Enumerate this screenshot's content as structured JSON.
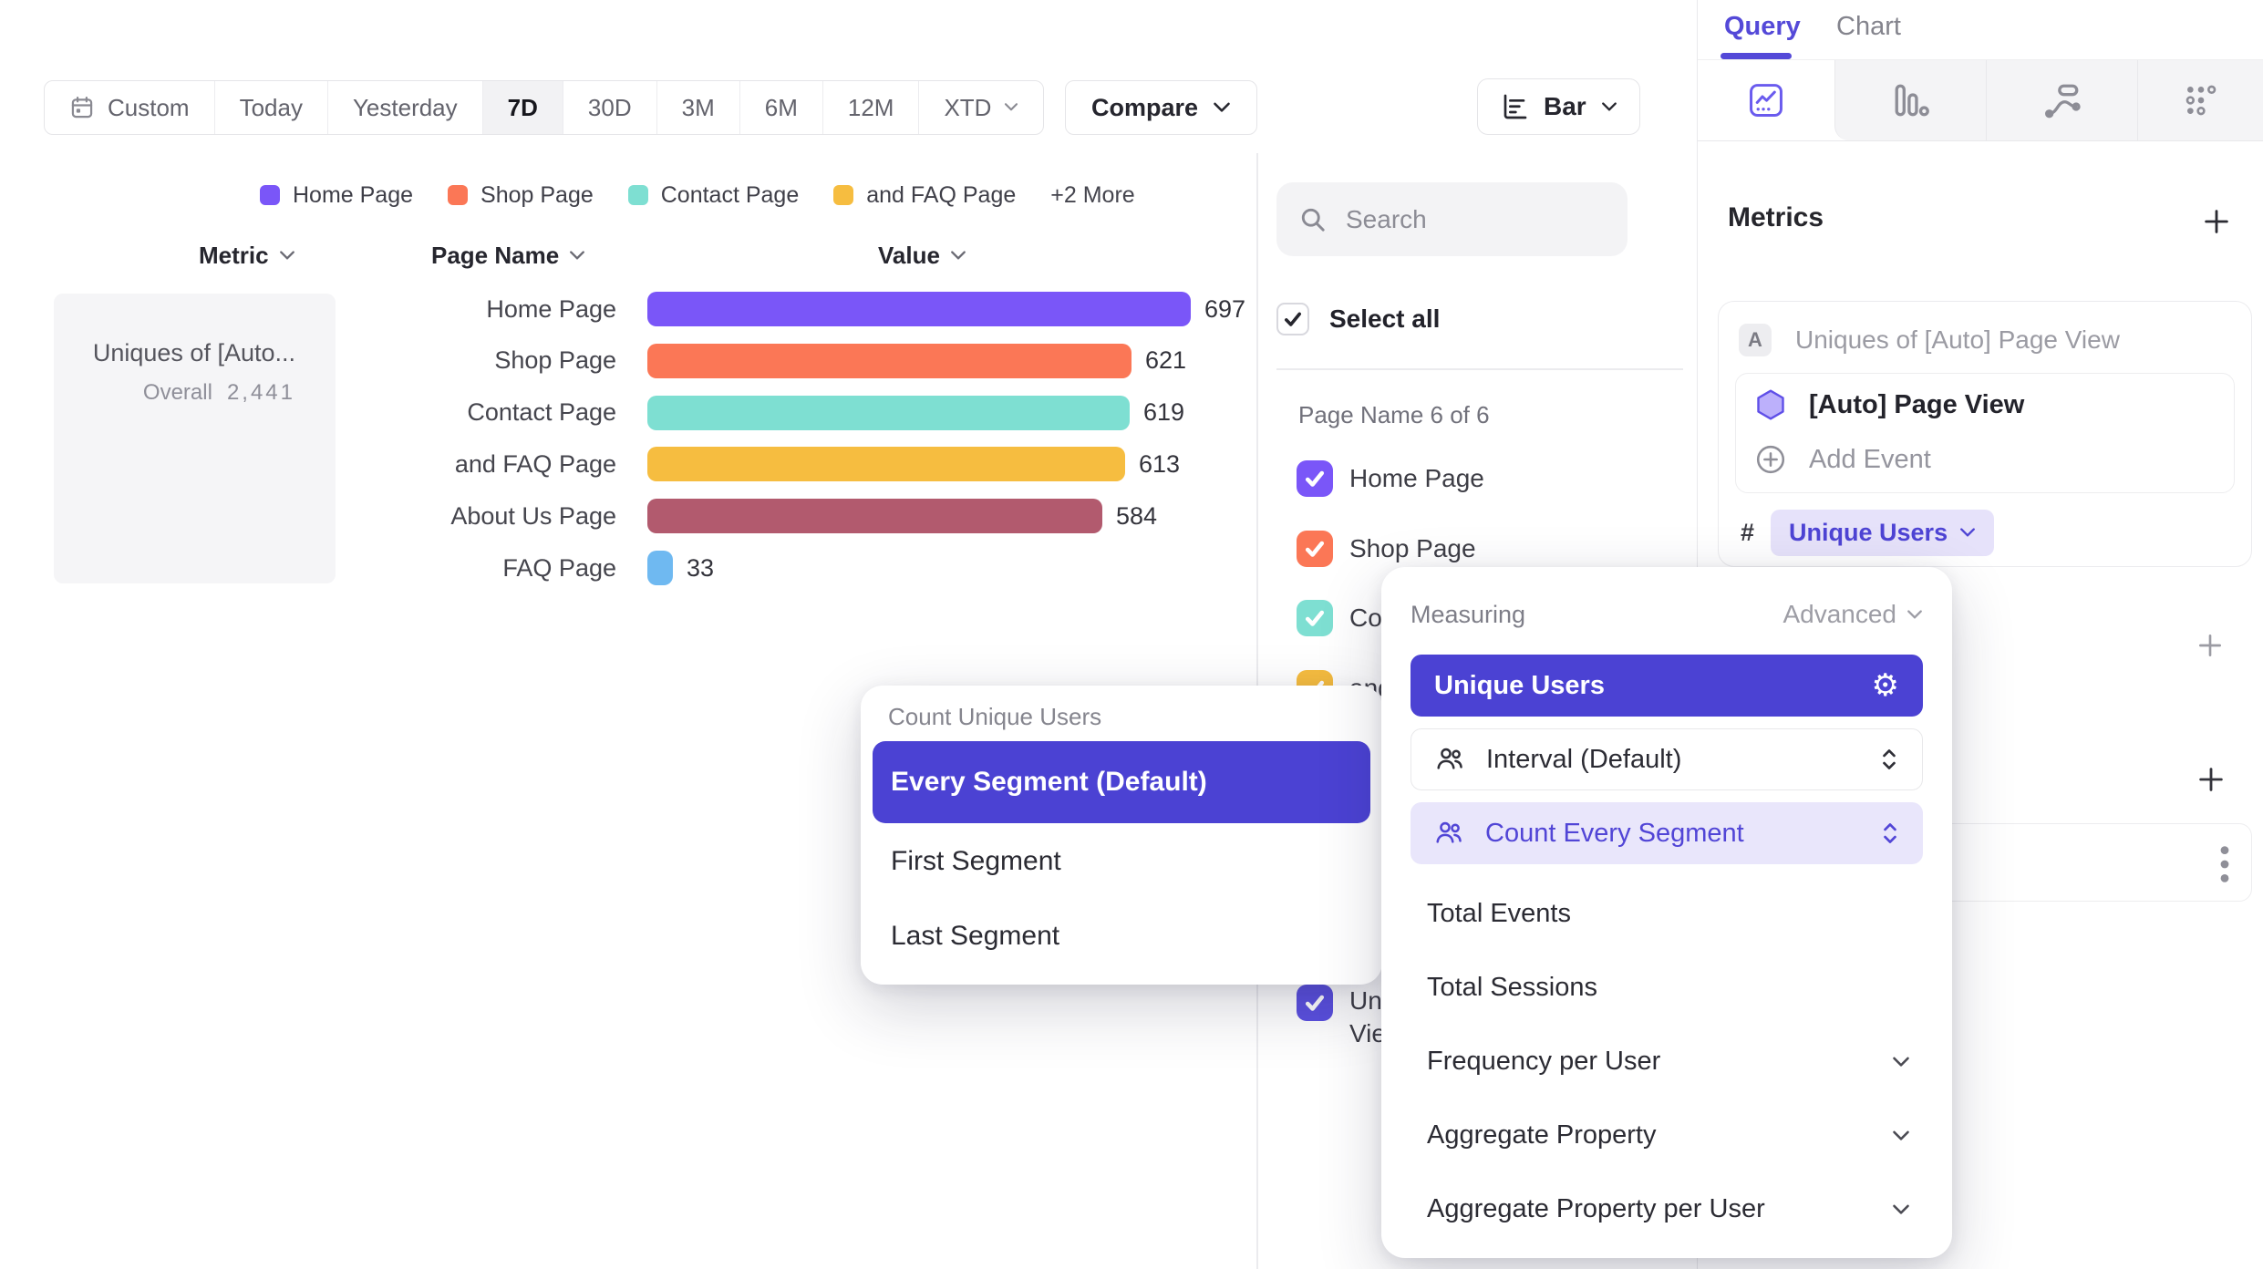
{
  "toolbar": {
    "date_ranges": [
      "Custom",
      "Today",
      "Yesterday",
      "7D",
      "30D",
      "3M",
      "6M",
      "12M",
      "XTD"
    ],
    "selected_range": "7D",
    "dropdown_ranges": [
      "XTD"
    ],
    "icon_ranges": [
      "Custom"
    ],
    "compare": "Compare",
    "chart_type": "Bar"
  },
  "legend": {
    "items": [
      {
        "label": "Home Page",
        "color": "#7A56F8"
      },
      {
        "label": "Shop Page",
        "color": "#FB7756"
      },
      {
        "label": "Contact Page",
        "color": "#7EDFD2"
      },
      {
        "label": "and FAQ Page",
        "color": "#F6BD40"
      }
    ],
    "more": "+2 More"
  },
  "table_headers": [
    "Metric",
    "Page Name",
    "Value"
  ],
  "metric_summary": {
    "title": "Uniques of [Auto...",
    "overall_label": "Overall",
    "overall_value": "2,441"
  },
  "chart_data": {
    "type": "bar",
    "orientation": "horizontal",
    "title": "Uniques of [Auto] Page View",
    "categories": [
      "Home Page",
      "Shop Page",
      "Contact Page",
      "and FAQ Page",
      "About Us Page",
      "FAQ Page"
    ],
    "values": [
      697,
      621,
      619,
      613,
      584,
      33
    ],
    "colors": [
      "#7A56F8",
      "#FB7756",
      "#7EDFD2",
      "#F6BD40",
      "#B25A6E",
      "#6FB9F1"
    ],
    "overall": 2441,
    "xlim": [
      0,
      697
    ],
    "value_labels": true,
    "grid": false,
    "legend_position": "top"
  },
  "filter_panel": {
    "search_placeholder": "Search",
    "select_all": "Select all",
    "group_label": "Page Name 6 of 6",
    "items": [
      {
        "label": "Home Page",
        "color": "#7A56F8",
        "checked": true
      },
      {
        "label": "Shop Page",
        "color": "#FB7756",
        "checked": true
      },
      {
        "label": "Contact Page",
        "color": "#7EDFD2",
        "checked": true
      },
      {
        "label": "and FAQ Page",
        "color": "#F6BD40",
        "checked": true
      },
      {
        "label": "About Us Page",
        "color": "#B25A6E",
        "checked": true
      },
      {
        "label": "FAQ Page",
        "color": "#6FB9F1",
        "checked": true
      }
    ],
    "metric_item": {
      "label": "Uniques of [Auto] Page View",
      "color": "#5B50E0",
      "checked": true
    }
  },
  "query_panel": {
    "tabs": [
      {
        "label": "Query",
        "active": true
      },
      {
        "label": "Chart",
        "active": false
      }
    ],
    "view_tabs": [
      {
        "name": "insights",
        "active": true
      },
      {
        "name": "funnels",
        "active": false
      },
      {
        "name": "flows",
        "active": false
      },
      {
        "name": "retention",
        "active": false
      }
    ],
    "metrics_heading": "Metrics",
    "metric_card": {
      "badge": "A",
      "title": "Uniques of [Auto] Page View",
      "event_name": "[Auto] Page View",
      "add_event_label": "Add Event",
      "hash": "#",
      "measurement": "Unique Users"
    }
  },
  "measuring_popover": {
    "title": "Measuring",
    "advanced_label": "Advanced",
    "selected_option": "Unique Users",
    "param_rows": [
      {
        "label": "Interval (Default)",
        "active": false
      },
      {
        "label": "Count Every Segment",
        "active": true
      }
    ],
    "options": [
      {
        "label": "Total Events",
        "expandable": false
      },
      {
        "label": "Total Sessions",
        "expandable": false
      },
      {
        "label": "Frequency per User",
        "expandable": true
      },
      {
        "label": "Aggregate Property",
        "expandable": true
      },
      {
        "label": "Aggregate Property per User",
        "expandable": true
      }
    ]
  },
  "segment_popover": {
    "title": "Count Unique Users",
    "selected_option": "Every Segment (Default)",
    "options": [
      "First Segment",
      "Last Segment"
    ]
  },
  "colors": {
    "accent": "#4B42D3",
    "accent_light": "#E9E6FB",
    "brand_purple": "#7A56F8",
    "pill_bg": "#E6E2FA",
    "pill_text": "#4E44D4",
    "active_tab": "#5449D8"
  }
}
